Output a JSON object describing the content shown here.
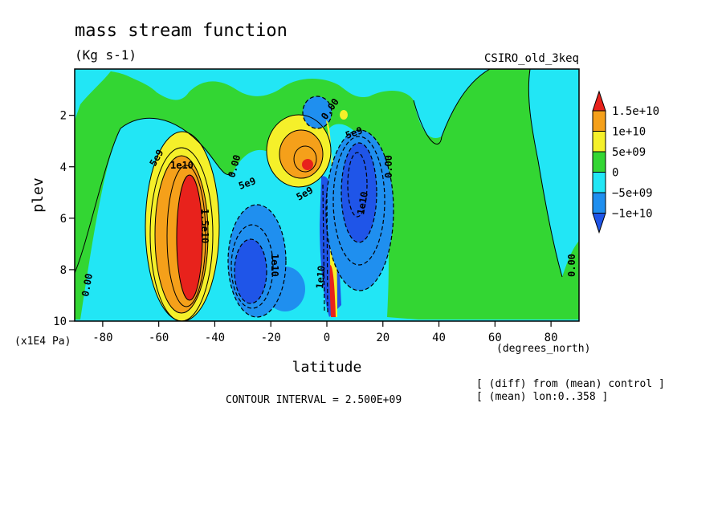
{
  "chart_data": {
    "type": "heatmap",
    "title": "mass stream function",
    "units": "(Kg s-1)",
    "dataset": "CSIRO_old_3keq",
    "xlabel": "latitude",
    "xunits": "(degrees_north)",
    "ylabel": "plev",
    "yunits": "(x1E4 Pa)",
    "xlim": [
      -90,
      90
    ],
    "ylim": [
      10,
      0.2
    ],
    "xticks": [
      -80,
      -60,
      -40,
      -20,
      0,
      20,
      40,
      60,
      80
    ],
    "yticks": [
      2,
      4,
      6,
      8,
      10
    ],
    "contour_interval_label": "CONTOUR INTERVAL = 2.500E+09",
    "notes": [
      "[ (diff) from (mean) control ]",
      "[ (mean) lon:0..358 ]"
    ],
    "colorbar": {
      "labels": [
        "1.5e+10",
        "1e+10",
        "5e+09",
        "0",
        "−5e+09",
        "−1e+10"
      ],
      "colors": [
        "#e8221c",
        "#f5a01a",
        "#f5f02a",
        "#33d633",
        "#22e6f5",
        "#1f8fef",
        "#1f55e8"
      ]
    },
    "contour_labels": [
      "5e9",
      "1e10",
      "1.5e10",
      "0.00",
      "5e9",
      "1e10",
      "5e9",
      "0.00",
      "5e9",
      "1e10",
      "0.00",
      "1e10",
      "0.00",
      "0.00"
    ],
    "features": [
      {
        "lat": -50,
        "plev": 7.0,
        "value": 16000000000.0
      },
      {
        "lat": -7,
        "plev": 3.8,
        "value": 13000000000.0
      },
      {
        "lat": -27,
        "plev": 7.8,
        "value": -13000000000.0
      },
      {
        "lat": 12,
        "plev": 5.5,
        "value": -11000000000.0
      },
      {
        "lat": 2,
        "plev": 8.5,
        "value": -15000000000.0
      },
      {
        "lat": 5,
        "plev": 9.6,
        "value": 15000000000.0
      }
    ]
  }
}
